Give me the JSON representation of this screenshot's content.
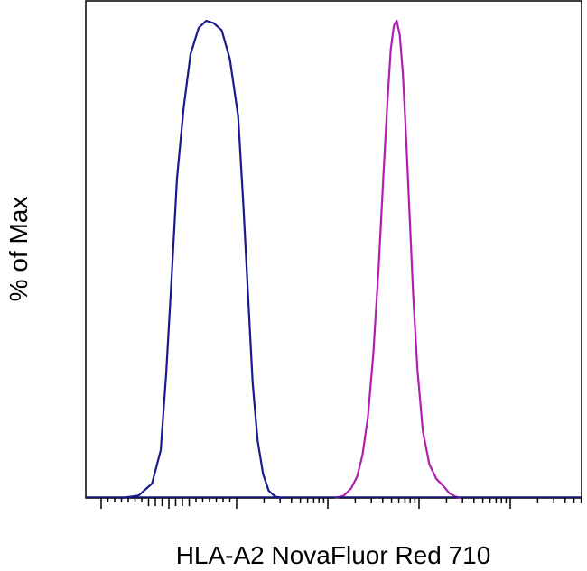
{
  "chart_data": {
    "type": "line",
    "title": "",
    "xlabel": "HLA-A2 NovaFluor Red 710",
    "ylabel": "% of Max",
    "xscale": "biexponential",
    "xlim": [
      -2000,
      250000
    ],
    "ylim": [
      0,
      100
    ],
    "grid": false,
    "legend": "none",
    "tick_labels_shown": false,
    "colors": {
      "axis": "#000000",
      "background": "#ffffff"
    },
    "series": [
      {
        "color": "#1a1a8c",
        "x": [
          -70,
          -45,
          -25,
          -12,
          -4,
          4,
          12,
          22,
          32,
          44,
          55,
          66,
          78,
          90,
          104,
          118,
          134,
          150,
          170,
          195,
          225,
          265,
          320
        ],
        "y": [
          0,
          0.5,
          3,
          10,
          26,
          46,
          67,
          82,
          93,
          98.5,
          100,
          99.5,
          98,
          92,
          80,
          62,
          42,
          24,
          12,
          5,
          1.5,
          0.3,
          0
        ]
      },
      {
        "color": "#b020b0",
        "x": [
          1200,
          1500,
          1800,
          2100,
          2400,
          2750,
          3150,
          3600,
          4050,
          4500,
          4900,
          5300,
          5700,
          6150,
          6650,
          7200,
          7850,
          8600,
          9600,
          11000,
          13000,
          15500,
          18500,
          21500,
          25000,
          29000
        ],
        "y": [
          0,
          0.5,
          2,
          4.5,
          9,
          17,
          30,
          48,
          67,
          83,
          94,
          99,
          100,
          97,
          89,
          76,
          60,
          43,
          27,
          14,
          7,
          4,
          2.5,
          1,
          0.3,
          0
        ]
      }
    ]
  }
}
